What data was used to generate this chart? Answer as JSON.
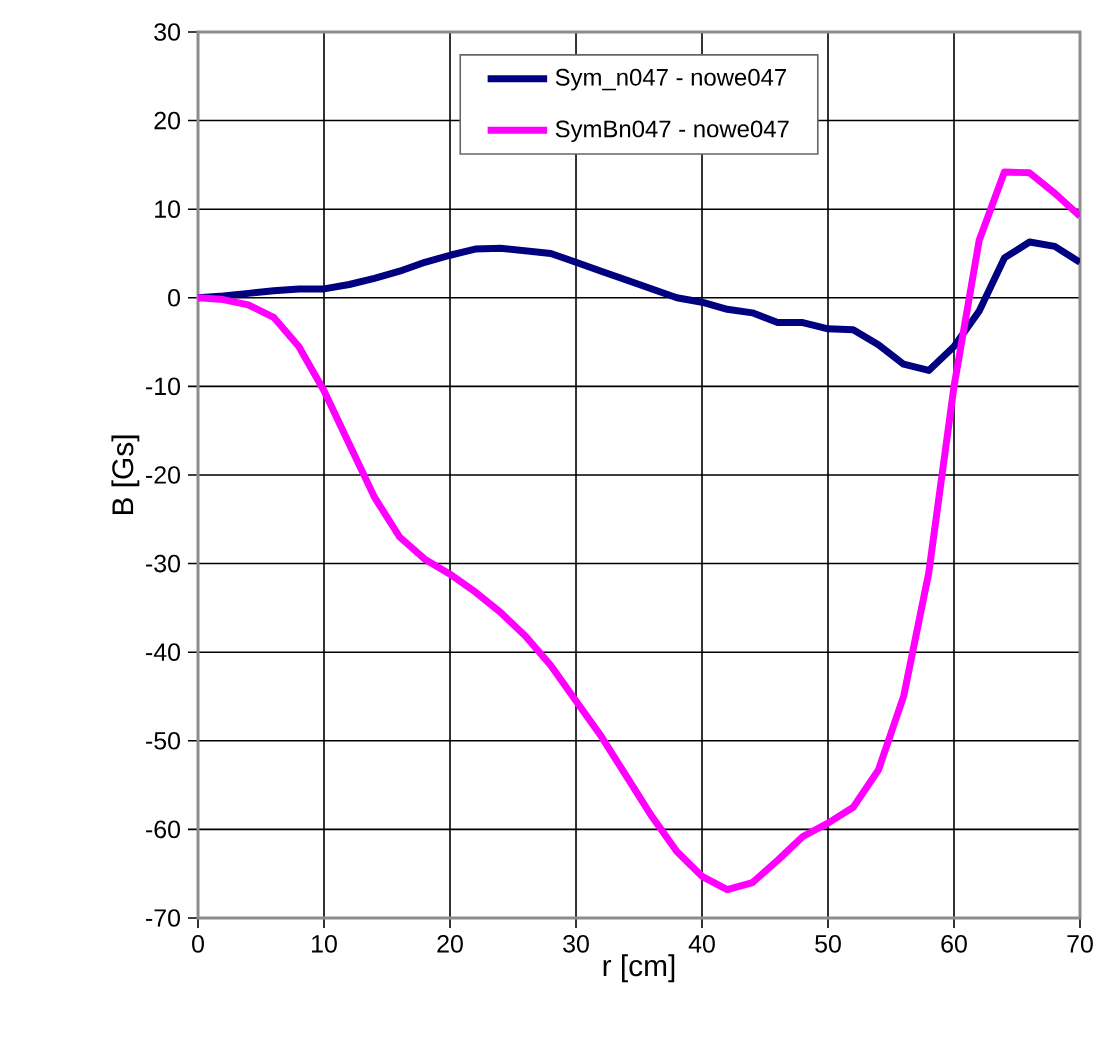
{
  "chart_data": {
    "type": "line",
    "xlabel": "r [cm]",
    "ylabel": "B [Gs]",
    "xlim": [
      0,
      70
    ],
    "ylim": [
      -70,
      30
    ],
    "xticks": [
      0,
      10,
      20,
      30,
      40,
      50,
      60,
      70
    ],
    "yticks": [
      -70,
      -60,
      -50,
      -40,
      -30,
      -20,
      -10,
      0,
      10,
      20,
      30
    ],
    "grid": true,
    "legend": "top",
    "marker": "none",
    "line_style": "solid",
    "x": [
      0,
      2,
      4,
      6,
      8,
      10,
      12,
      14,
      16,
      18,
      20,
      22,
      24,
      26,
      28,
      30,
      32,
      34,
      36,
      38,
      40,
      42,
      44,
      46,
      48,
      50,
      52,
      54,
      56,
      58,
      60,
      62,
      64,
      66,
      68,
      70
    ],
    "series": [
      {
        "name": "Sym_n047 - nowe047",
        "color": "#000080",
        "values": [
          0,
          0.2,
          0.5,
          0.8,
          1,
          1,
          1.5,
          2.2,
          3,
          4,
          4.8,
          5.5,
          5.6,
          5.3,
          5,
          4,
          3,
          2,
          1,
          0,
          -0.5,
          -1.3,
          -1.7,
          -2.8,
          -2.8,
          -3.5,
          -3.6,
          -5.3,
          -7.5,
          -8.2,
          -5.5,
          -1.5,
          4.5,
          6.3,
          5.8,
          4
        ]
      },
      {
        "name": "SymBn047 - nowe047",
        "color": "#ff00ff",
        "values": [
          0,
          -0.2,
          -0.8,
          -2.2,
          -5.5,
          -10.5,
          -16.5,
          -22.5,
          -27,
          -29.5,
          -31.2,
          -33.2,
          -35.5,
          -38.2,
          -41.5,
          -45.5,
          -49.5,
          -54,
          -58.5,
          -62.5,
          -65.3,
          -66.8,
          -66,
          -63.5,
          -60.8,
          -59.3,
          -57.5,
          -53.3,
          -45,
          -31,
          -10,
          6.5,
          14.2,
          14.1,
          11.8,
          9.2
        ]
      }
    ]
  }
}
